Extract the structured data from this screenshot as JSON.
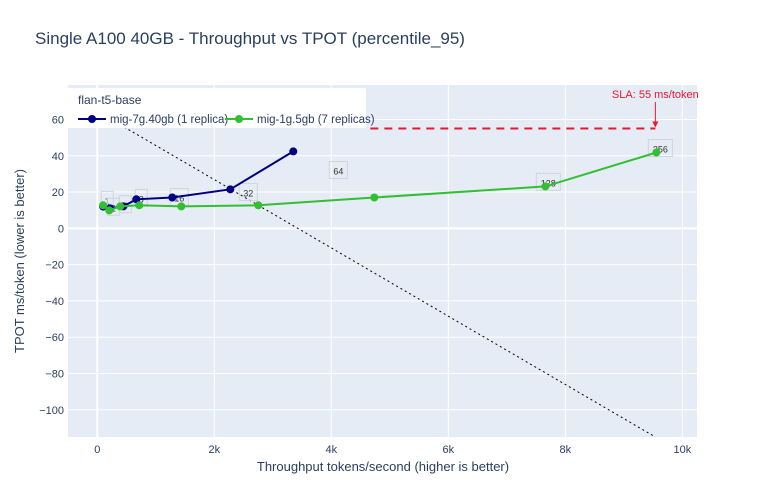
{
  "chart_data": {
    "type": "line",
    "title": "Single A100 40GB - Throughput vs TPOT (percentile_95)",
    "xlabel": "Throughput tokens/second (higher is better)",
    "ylabel": "TPOT ms/token (lower is better)",
    "xlim": [
      -500,
      10250
    ],
    "ylim": [
      -115,
      79
    ],
    "xticks": [
      0,
      2000,
      4000,
      6000,
      8000,
      10000
    ],
    "xtick_labels": [
      "0",
      "2k",
      "4k",
      "6k",
      "8k",
      "10k"
    ],
    "yticks": [
      -100,
      -80,
      -60,
      -40,
      -20,
      0,
      20,
      40,
      60
    ],
    "ytick_labels": [
      "−100",
      "−80",
      "−60",
      "−40",
      "−20",
      "0",
      "20",
      "40",
      "60"
    ],
    "grid": true,
    "legend": {
      "title": "flan-t5-base",
      "placement": "top-left",
      "orientation": "horizontal"
    },
    "series": [
      {
        "name": "mig-7g.40gb (1 replica)",
        "color": "#000080",
        "x": [
          100,
          220,
          444,
          667,
          1282,
          2274,
          3350
        ],
        "y": [
          12,
          11,
          12.1,
          16,
          17,
          21.5,
          42.4
        ]
      },
      {
        "name": "mig-1g.5gb (7 replicas)",
        "color": "#32c032",
        "x": [
          100,
          205,
          393,
          718,
          1436,
          2752,
          4735,
          7658,
          9556
        ],
        "y": [
          12.7,
          9.9,
          12.1,
          12.7,
          12.1,
          12.7,
          17,
          23.1,
          41.8
        ]
      }
    ],
    "point_labels": [
      {
        "text": "1",
        "x": 171,
        "y": 15.4
      },
      {
        "text": "2",
        "x": 274,
        "y": 11.6
      },
      {
        "text": "4",
        "x": 479,
        "y": 13
      },
      {
        "text": "8",
        "x": 752,
        "y": 16.5
      },
      {
        "text": "16",
        "x": 1402,
        "y": 17
      },
      {
        "text": "32",
        "x": 2581,
        "y": 19.8
      },
      {
        "text": "64",
        "x": 4120,
        "y": 31.9
      },
      {
        "text": "128",
        "x": 7709,
        "y": 25.3
      },
      {
        "text": "256",
        "x": 9624,
        "y": 44
      }
    ],
    "reference_line": {
      "x": [
        -500,
        9538
      ],
      "y": [
        73.9,
        -115
      ],
      "color": "#000000",
      "style": "dotted"
    },
    "sla": {
      "label": "SLA: 55 ms/token",
      "value": 55,
      "x": [
        4667,
        9538
      ],
      "color": "#e8192c",
      "style": "dashed"
    }
  }
}
